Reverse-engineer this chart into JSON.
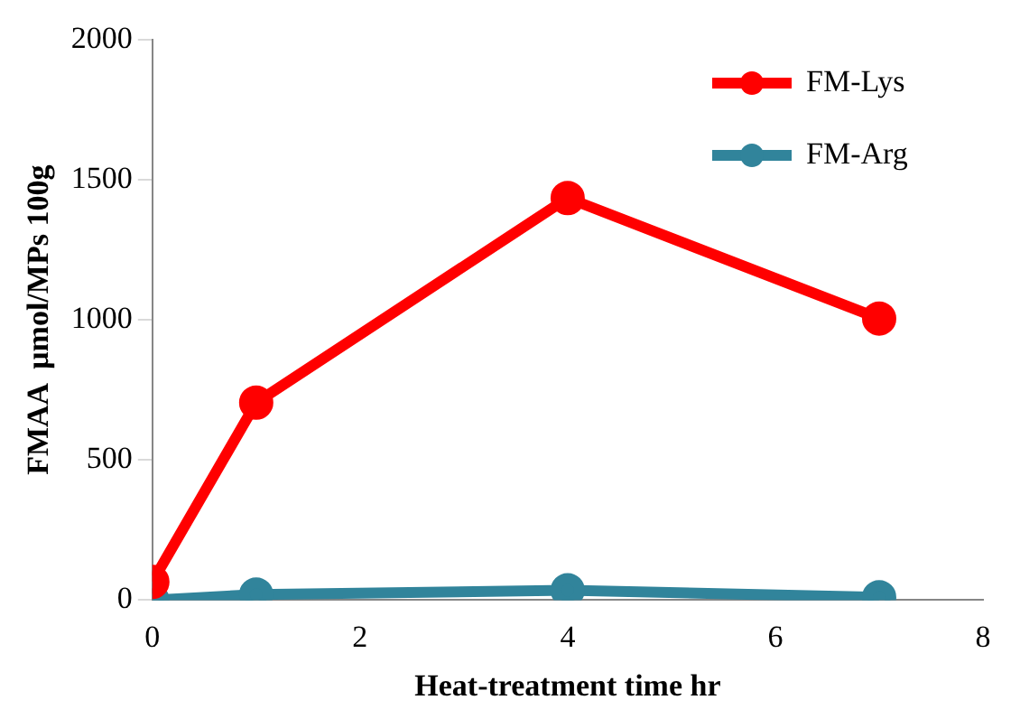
{
  "chart_data": {
    "type": "line",
    "xlabel": "Heat-treatment time hr",
    "ylabel": "FMAA  μmol/MPs 100g",
    "x": [
      0,
      1,
      4,
      7
    ],
    "series": [
      {
        "name": "FM-Lys",
        "color": "#ff0000",
        "values": [
          65,
          705,
          1435,
          1005
        ]
      },
      {
        "name": "FM-Arg",
        "color": "#31849b",
        "values": [
          0,
          20,
          35,
          10
        ]
      }
    ],
    "xlim": [
      0,
      8
    ],
    "xticks": [
      0,
      2,
      4,
      6,
      8
    ],
    "ylim": [
      0,
      2000
    ],
    "yticks": [
      0,
      500,
      1000,
      1500,
      2000
    ],
    "grid": false,
    "legend": "top right",
    "marker": "circle",
    "line_style": "solid"
  }
}
